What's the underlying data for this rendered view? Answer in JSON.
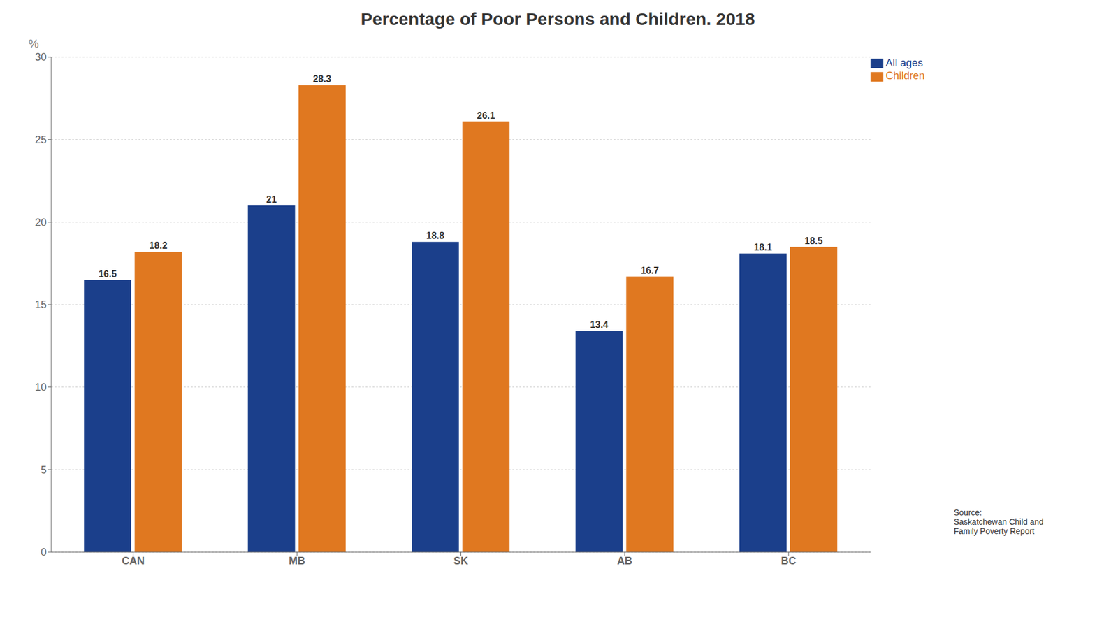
{
  "chart_data": {
    "type": "bar",
    "title": "Percentage of Poor Persons and Children. 2018",
    "categories": [
      "CAN",
      "MB",
      "SK",
      "AB",
      "BC"
    ],
    "series": [
      {
        "name": "All ages",
        "color": "#1b3f8b",
        "values": [
          16.5,
          21.0,
          18.8,
          13.4,
          18.1
        ]
      },
      {
        "name": "Children",
        "color": "#e07820",
        "values": [
          18.2,
          28.3,
          26.1,
          16.7,
          18.5
        ]
      }
    ],
    "ylabel": "%",
    "ylim": [
      0,
      30
    ],
    "yticks": [
      0,
      5,
      10,
      15,
      20,
      25,
      30
    ],
    "grid": true,
    "legend": "upper right",
    "data_labels": true,
    "annotations": [
      "Source:\nSaskatchewan Child and\nFamily Poverty Report"
    ]
  }
}
